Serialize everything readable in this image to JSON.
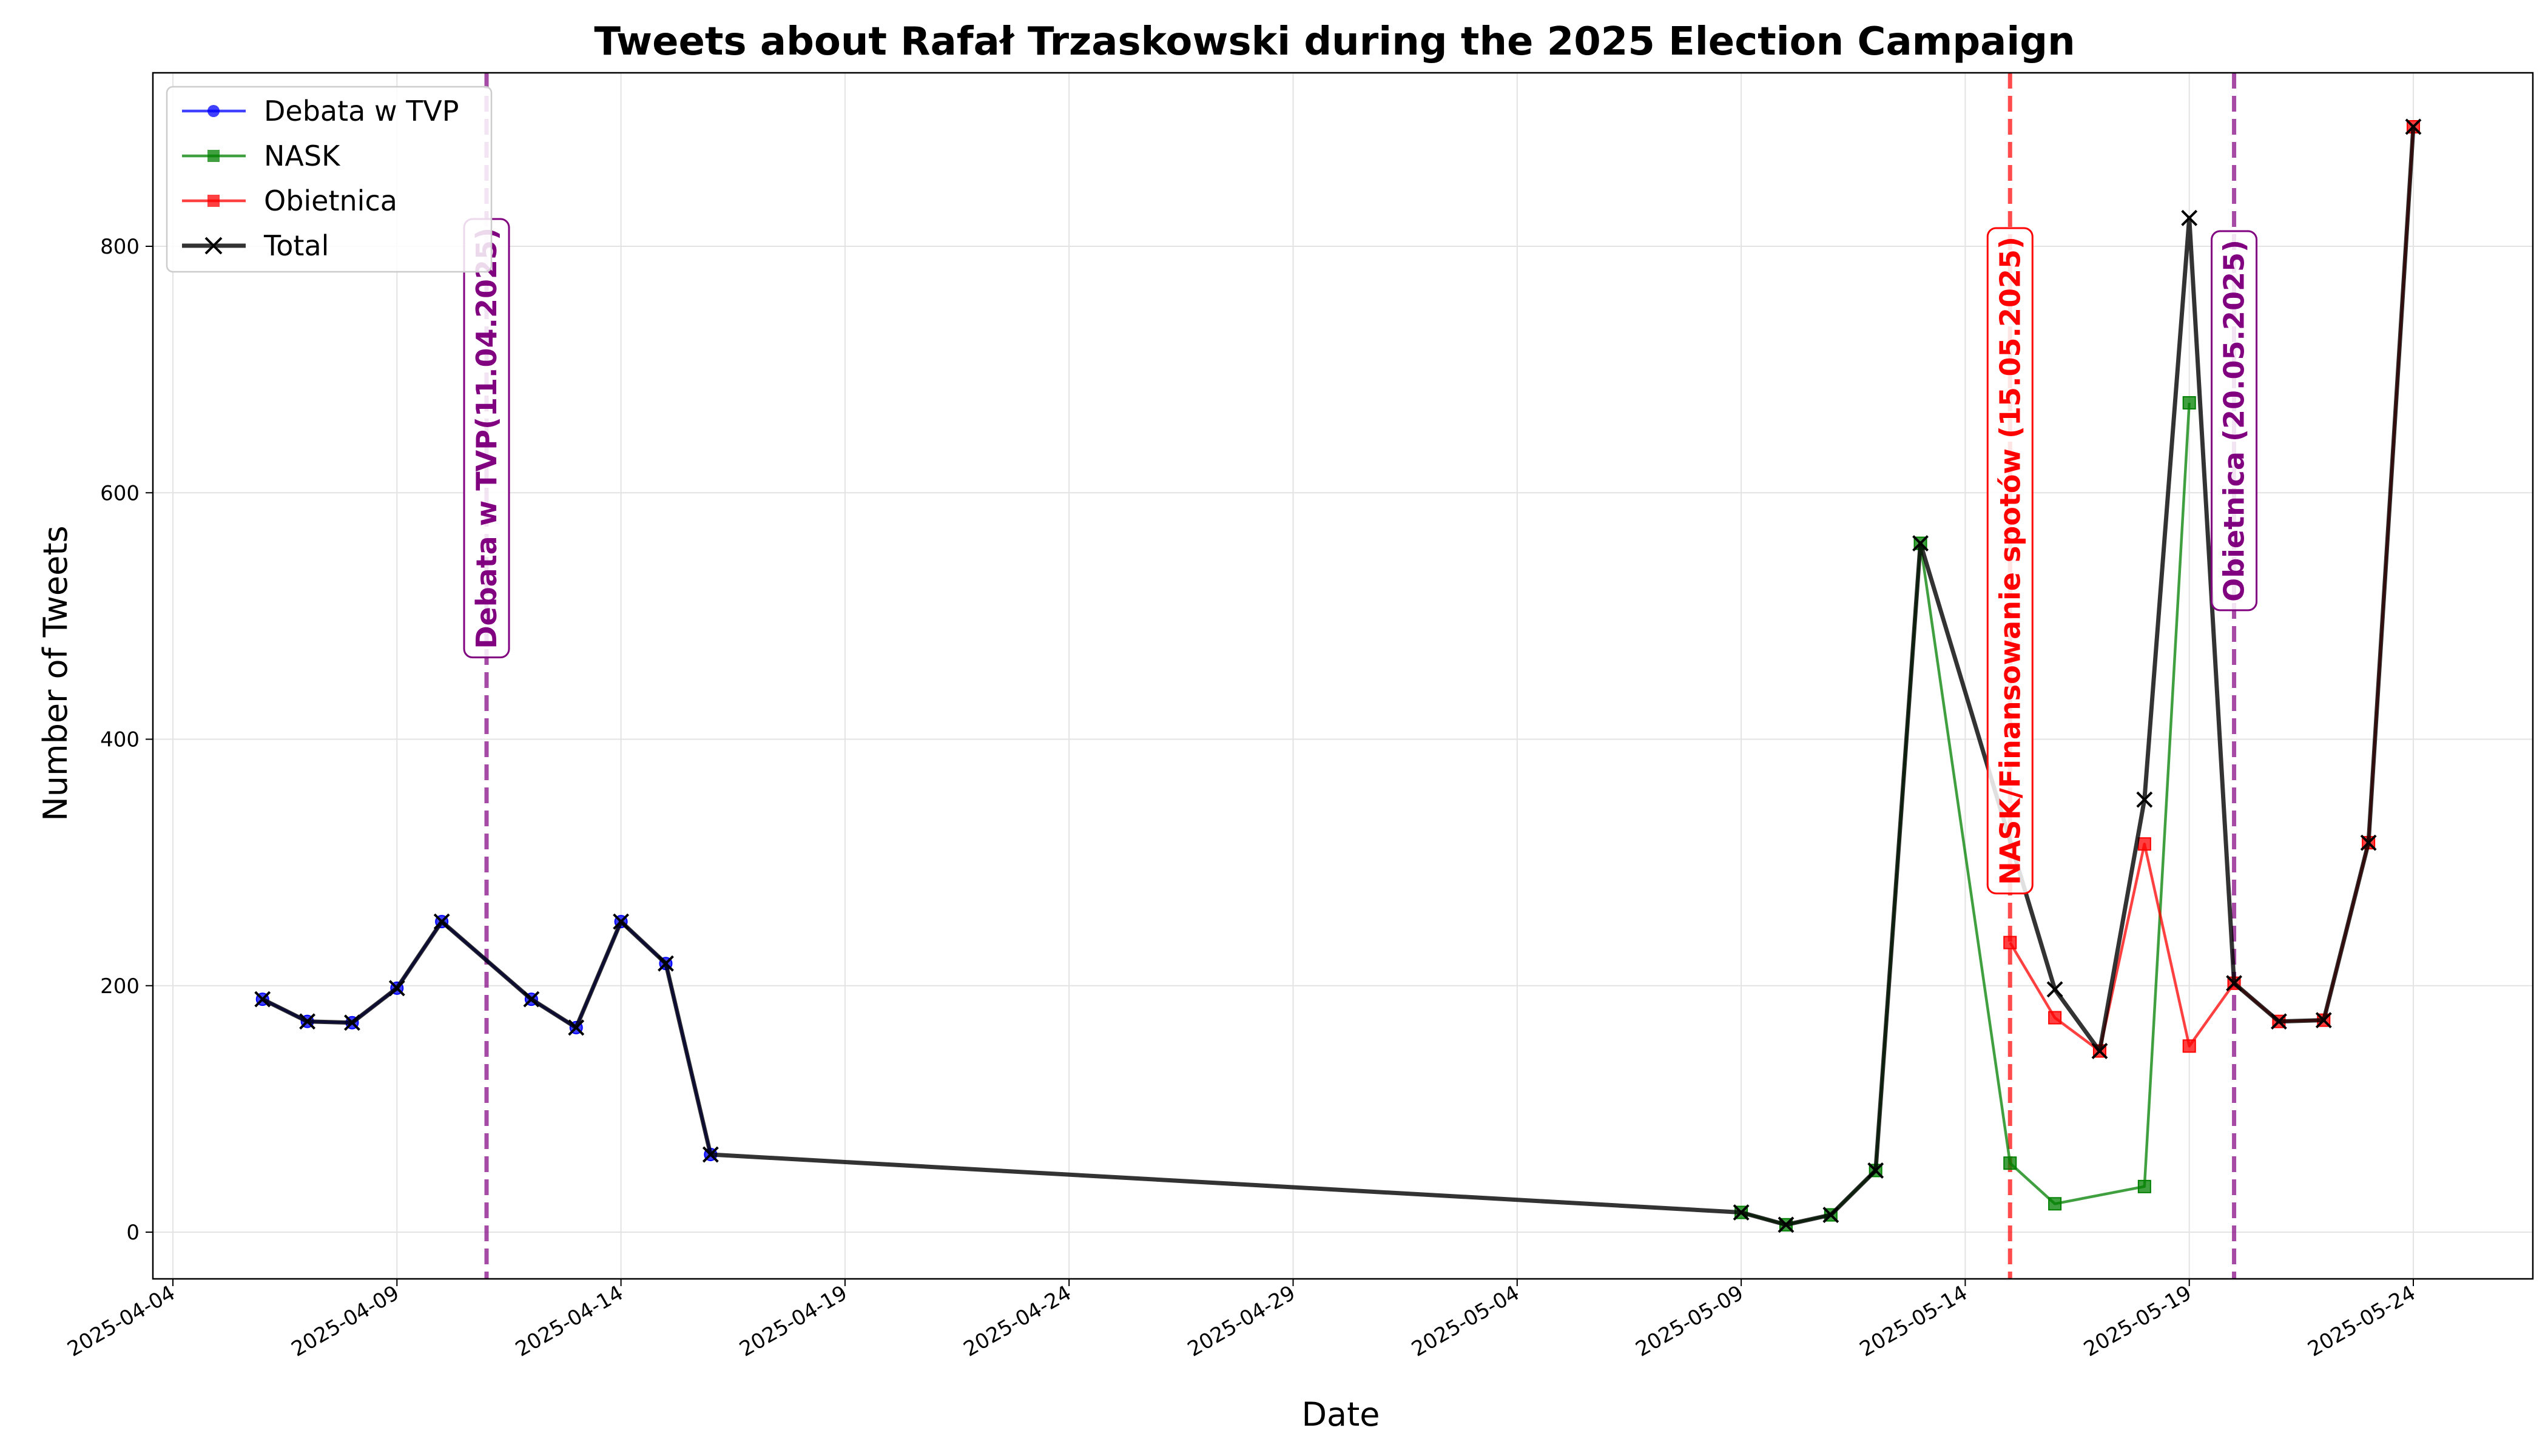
{
  "chart_data": {
    "type": "line",
    "title": "Tweets about Rafał Trzaskowski during the 2025 Election Campaign",
    "xlabel": "Date",
    "ylabel": "Number of Tweets",
    "xlim": [
      "2025-04-04",
      "2025-05-27"
    ],
    "ylim": [
      -40,
      940
    ],
    "x_ticks": [
      "2025-04-04",
      "2025-04-09",
      "2025-04-14",
      "2025-04-19",
      "2025-04-24",
      "2025-04-29",
      "2025-05-04",
      "2025-05-09",
      "2025-05-14",
      "2025-05-19",
      "2025-05-24"
    ],
    "y_ticks": [
      0,
      200,
      400,
      600,
      800
    ],
    "grid": true,
    "legend_position": "top-left",
    "series": [
      {
        "name": "Debata w TVP",
        "color": "#0000ff",
        "marker": "circle",
        "points": [
          [
            "2025-04-06",
            189
          ],
          [
            "2025-04-07",
            171
          ],
          [
            "2025-04-08",
            170
          ],
          [
            "2025-04-09",
            198
          ],
          [
            "2025-04-10",
            252
          ],
          [
            "2025-04-12",
            189
          ],
          [
            "2025-04-13",
            166
          ],
          [
            "2025-04-14",
            252
          ],
          [
            "2025-04-15",
            218
          ],
          [
            "2025-04-16",
            63
          ]
        ]
      },
      {
        "name": "NASK",
        "color": "#008000",
        "marker": "square",
        "points": [
          [
            "2025-05-09",
            16
          ],
          [
            "2025-05-10",
            6
          ],
          [
            "2025-05-11",
            14
          ],
          [
            "2025-05-12",
            50
          ],
          [
            "2025-05-13",
            559
          ],
          [
            "2025-05-15",
            56
          ],
          [
            "2025-05-16",
            23
          ],
          [
            "2025-05-18",
            37
          ],
          [
            "2025-05-19",
            673
          ]
        ]
      },
      {
        "name": "Obietnica",
        "color": "#ff0000",
        "marker": "square",
        "points": [
          [
            "2025-05-15",
            235
          ],
          [
            "2025-05-16",
            174
          ],
          [
            "2025-05-17",
            147
          ],
          [
            "2025-05-18",
            315
          ],
          [
            "2025-05-19",
            151
          ],
          [
            "2025-05-20",
            202
          ],
          [
            "2025-05-21",
            171
          ],
          [
            "2025-05-22",
            172
          ],
          [
            "2025-05-23",
            316
          ],
          [
            "2025-05-24",
            897
          ]
        ]
      },
      {
        "name": "Total",
        "color": "#000000",
        "marker": "x",
        "points": [
          [
            "2025-04-06",
            189
          ],
          [
            "2025-04-07",
            171
          ],
          [
            "2025-04-08",
            170
          ],
          [
            "2025-04-09",
            198
          ],
          [
            "2025-04-10",
            252
          ],
          [
            "2025-04-12",
            189
          ],
          [
            "2025-04-13",
            166
          ],
          [
            "2025-04-14",
            252
          ],
          [
            "2025-04-15",
            218
          ],
          [
            "2025-04-16",
            63
          ],
          [
            "2025-05-09",
            16
          ],
          [
            "2025-05-10",
            6
          ],
          [
            "2025-05-11",
            14
          ],
          [
            "2025-05-12",
            50
          ],
          [
            "2025-05-13",
            559
          ],
          [
            "2025-05-16",
            197
          ],
          [
            "2025-05-17",
            147
          ],
          [
            "2025-05-18",
            351
          ],
          [
            "2025-05-19",
            823
          ],
          [
            "2025-05-20",
            202
          ],
          [
            "2025-05-21",
            171
          ],
          [
            "2025-05-22",
            172
          ],
          [
            "2025-05-23",
            316
          ],
          [
            "2025-05-24",
            897
          ]
        ]
      }
    ],
    "events": [
      {
        "date": "2025-04-11",
        "label": "Debata w TVP(11.04.2025)",
        "color": "#800080"
      },
      {
        "date": "2025-05-15",
        "label": "NASK/Finansowanie spotów (15.05.2025)",
        "color": "#ff0000"
      },
      {
        "date": "2025-05-20",
        "label": "Obietnica (20.05.2025)",
        "color": "#800080"
      }
    ]
  }
}
